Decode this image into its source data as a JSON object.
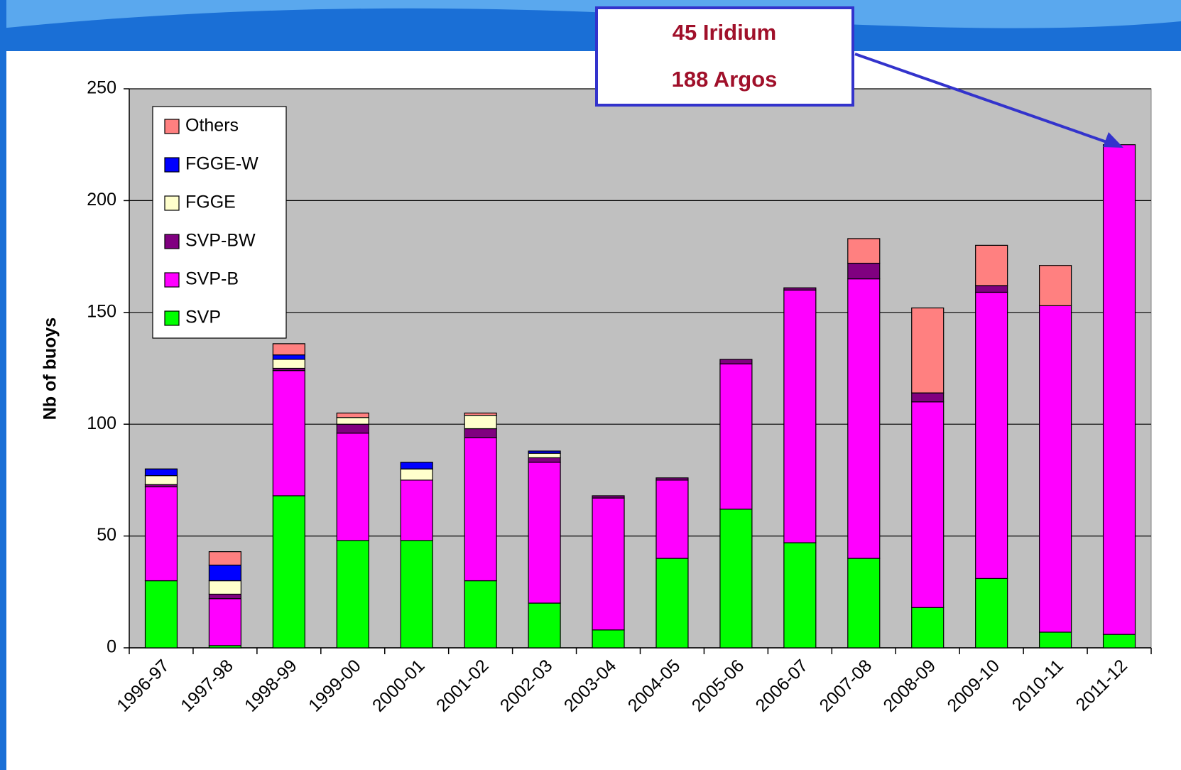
{
  "chart_data": {
    "type": "stacked_bar",
    "y_label": "Nb of buoys",
    "annotations": [
      "45 Iridium",
      "188 Argos"
    ],
    "categories": [
      "1996-97",
      "1997-98",
      "1998-99",
      "1999-00",
      "2000-01",
      "2001-02",
      "2002-03",
      "2003-04",
      "2004-05",
      "2005-06",
      "2006-07",
      "2007-08",
      "2008-09",
      "2009-10",
      "2010-11",
      "2011-12"
    ],
    "series": [
      {
        "name": "SVP",
        "color": "#00ff00",
        "values": [
          30,
          1,
          68,
          48,
          48,
          30,
          20,
          8,
          40,
          62,
          47,
          40,
          18,
          31,
          7,
          6
        ]
      },
      {
        "name": "SVP-B",
        "color": "#ff00ff",
        "values": [
          42,
          21,
          56,
          48,
          27,
          64,
          63,
          59,
          35,
          65,
          113,
          125,
          92,
          128,
          146,
          219
        ]
      },
      {
        "name": "SVP-BW",
        "color": "#800080",
        "values": [
          1,
          2,
          1,
          4,
          0,
          4,
          2,
          1,
          1,
          2,
          1,
          7,
          4,
          3,
          0,
          0
        ]
      },
      {
        "name": "FGGE",
        "color": "#ffffcc",
        "values": [
          4,
          6,
          4,
          3,
          5,
          6,
          2,
          0,
          0,
          0,
          0,
          0,
          0,
          0,
          0,
          0
        ]
      },
      {
        "name": "FGGE-W",
        "color": "#0000ff",
        "values": [
          3,
          7,
          2,
          0,
          3,
          0,
          1,
          0,
          0,
          0,
          0,
          0,
          0,
          0,
          0,
          0
        ]
      },
      {
        "name": "Others",
        "color": "#ff8080",
        "values": [
          0,
          6,
          5,
          2,
          0,
          1,
          0,
          0,
          0,
          0,
          0,
          11,
          38,
          18,
          18,
          0
        ]
      }
    ],
    "ylim": [
      0,
      250
    ],
    "yticks": [
      0,
      50,
      100,
      150,
      200,
      250
    ],
    "grid": true,
    "legend": "upper left",
    "plot_background": "#c0c0c0"
  }
}
